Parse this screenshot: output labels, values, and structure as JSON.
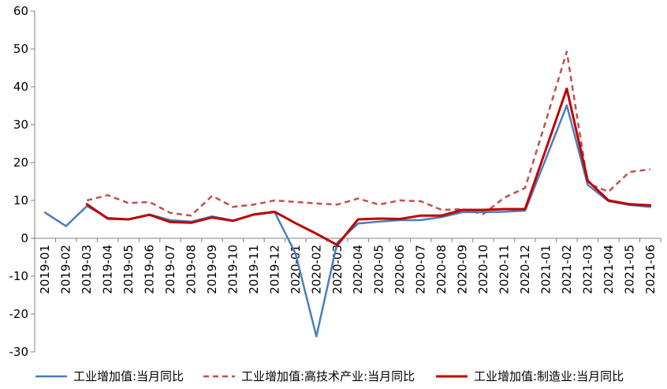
{
  "chart_data": {
    "type": "line",
    "title": "",
    "xlabel": "",
    "ylabel": "",
    "ylim": [
      -30,
      60
    ],
    "yticks": [
      -30,
      -20,
      -10,
      0,
      10,
      20,
      30,
      40,
      50,
      60
    ],
    "grid": false,
    "legend_position": "bottom",
    "categories": [
      "2019-01",
      "2019-02",
      "2019-03",
      "2019-04",
      "2019-05",
      "2019-06",
      "2019-07",
      "2019-08",
      "2019-09",
      "2019-10",
      "2019-11",
      "2019-12",
      "2020-01",
      "2020-02",
      "2020-03",
      "2020-04",
      "2020-05",
      "2020-06",
      "2020-07",
      "2020-08",
      "2020-09",
      "2020-10",
      "2020-11",
      "2020-12",
      "2021-01",
      "2021-02",
      "2021-03",
      "2021-04",
      "2021-05",
      "2021-06"
    ],
    "series": [
      {
        "name": "工业增加值:当月同比",
        "color": "#4a7ebb",
        "style": "solid",
        "values": [
          6.8,
          3.2,
          8.5,
          5.4,
          5.0,
          6.3,
          4.8,
          4.4,
          5.8,
          4.7,
          6.2,
          6.9,
          -4.0,
          -25.9,
          -1.1,
          3.9,
          4.4,
          4.8,
          4.8,
          5.6,
          6.9,
          6.9,
          7.0,
          7.3,
          21.0,
          35.1,
          14.1,
          9.8,
          8.8,
          8.3
        ]
      },
      {
        "name": "工业增加值:高技术产业:当月同比",
        "color": "#c0504d",
        "style": "dashed",
        "values": [
          null,
          null,
          10.0,
          11.4,
          9.3,
          9.6,
          6.7,
          6.0,
          11.2,
          8.3,
          8.9,
          10.0,
          9.6,
          9.2,
          8.9,
          10.5,
          8.9,
          10.0,
          9.8,
          7.5,
          7.7,
          6.4,
          10.7,
          13.3,
          31.0,
          49.3,
          14.5,
          12.3,
          17.5,
          18.2
        ]
      },
      {
        "name": "工业增加值:制造业:当月同比",
        "color": "#c00000",
        "style": "solid",
        "values": [
          null,
          null,
          9.0,
          5.2,
          5.0,
          6.2,
          4.3,
          4.1,
          5.5,
          4.6,
          6.3,
          7.0,
          4.0,
          1.2,
          -1.8,
          5.0,
          5.2,
          5.1,
          6.0,
          6.0,
          7.5,
          7.5,
          7.7,
          7.7,
          23.5,
          39.5,
          15.2,
          10.0,
          9.0,
          8.7
        ]
      }
    ]
  }
}
